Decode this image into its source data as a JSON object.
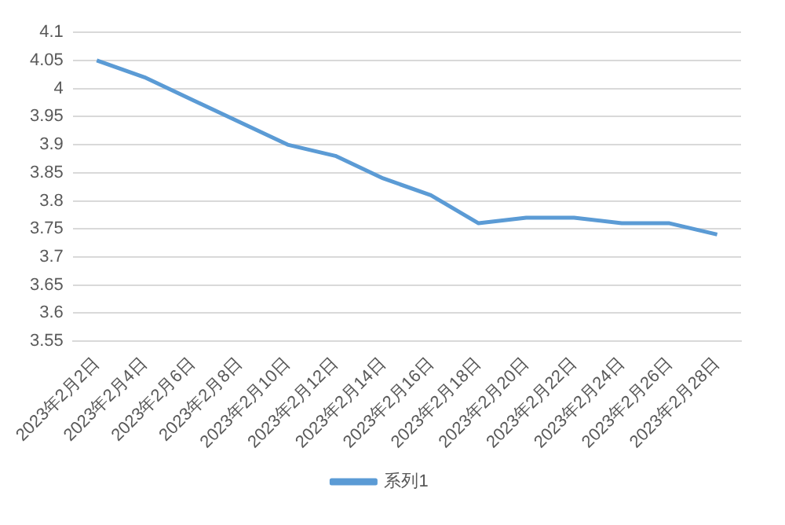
{
  "chart_data": {
    "type": "line",
    "categories": [
      "2023年2月2日",
      "2023年2月4日",
      "2023年2月6日",
      "2023年2月8日",
      "2023年2月10日",
      "2023年2月12日",
      "2023年2月14日",
      "2023年2月16日",
      "2023年2月18日",
      "2023年2月20日",
      "2023年2月22日",
      "2023年2月24日",
      "2023年2月26日",
      "2023年2月28日"
    ],
    "series": [
      {
        "name": "系列1",
        "color": "#5b9bd5",
        "values": [
          4.05,
          4.02,
          3.98,
          3.94,
          3.9,
          3.88,
          3.84,
          3.81,
          3.76,
          3.77,
          3.77,
          3.76,
          3.76,
          3.74
        ]
      }
    ],
    "ylim": [
      3.55,
      4.1
    ],
    "yticks": [
      3.55,
      3.6,
      3.65,
      3.7,
      3.75,
      3.8,
      3.85,
      3.9,
      3.95,
      4,
      4.05,
      4.1
    ],
    "grid": "y",
    "legend": "bottom",
    "marker": "none",
    "line_style": "solid"
  }
}
